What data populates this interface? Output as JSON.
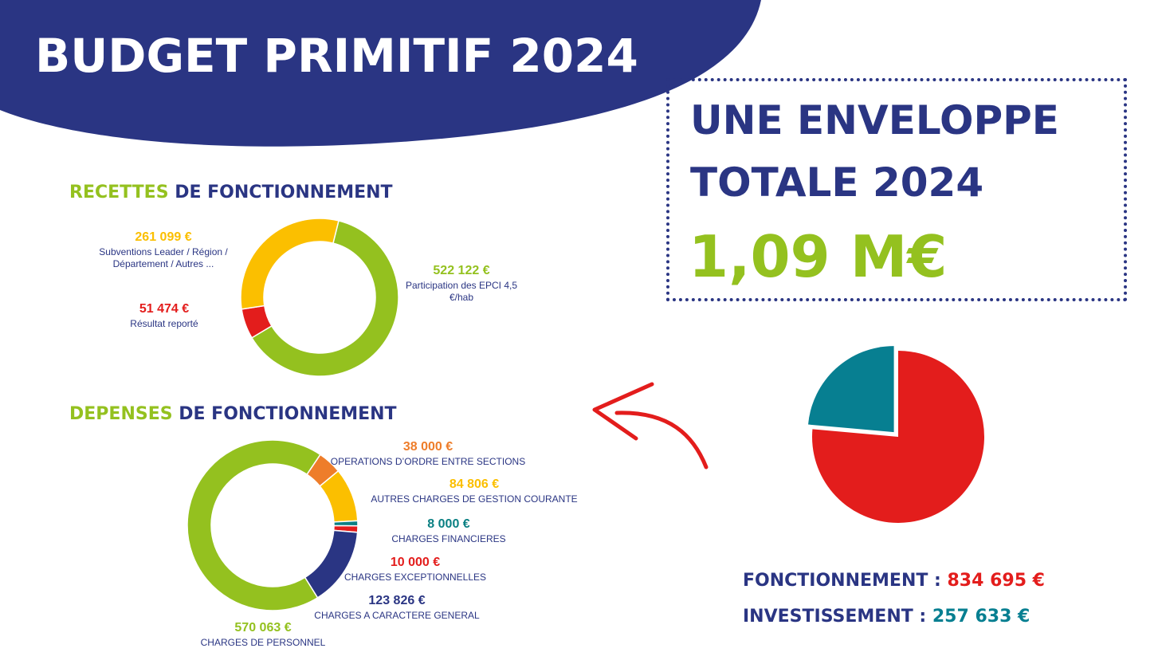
{
  "title": "BUDGET PRIMITIF 2024",
  "colors": {
    "navy": "#2a3583",
    "green": "#94c11f",
    "yellow": "#fbbf00",
    "red": "#e31d1c",
    "orange": "#ee7d2a",
    "teal": "#0b8083",
    "petrol": "#077f91"
  },
  "recettes_title": {
    "part1": "RECETTES",
    "part2": " DE FONCTIONNEMENT"
  },
  "depenses_title": {
    "part1": "DEPENSES",
    "part2": " DE FONCTIONNEMENT"
  },
  "envelope": {
    "line1": "UNE ENVELOPPE",
    "line2": "TOTALE 2024",
    "amount": "1,09 M€"
  },
  "summary": {
    "fonctionnement_label": "FONCTIONNEMENT : ",
    "fonctionnement_value": "834 695 €",
    "investissement_label": "INVESTISSEMENT : ",
    "investissement_value": "257 633 €"
  },
  "chart_data": [
    {
      "type": "pie",
      "title": "RECETTES DE FONCTIONNEMENT",
      "donut": true,
      "slices": [
        {
          "label": "Participation des EPCI 4,5 €/hab",
          "value": 522122,
          "display": "522 122 €",
          "color": "#94c11f"
        },
        {
          "label": "Résultat reporté",
          "value": 51474,
          "display": "51 474 €",
          "color": "#e31d1c"
        },
        {
          "label": "Subventions Leader / Région / Département / Autres ...",
          "value": 261099,
          "display": "261 099 €",
          "color": "#fbbf00"
        }
      ]
    },
    {
      "type": "pie",
      "title": "DEPENSES DE FONCTIONNEMENT",
      "donut": true,
      "slices": [
        {
          "label": "OPERATIONS D’ORDRE ENTRE SECTIONS",
          "value": 38000,
          "display": "38 000 €",
          "color": "#ee7d2a"
        },
        {
          "label": "AUTRES CHARGES DE GESTION COURANTE",
          "value": 84806,
          "display": "84 806 €",
          "color": "#fbbf00"
        },
        {
          "label": "CHARGES FINANCIERES",
          "value": 8000,
          "display": "8 000 €",
          "color": "#0b8083"
        },
        {
          "label": "CHARGES EXCEPTIONNELLES",
          "value": 10000,
          "display": "10 000 €",
          "color": "#e31d1c"
        },
        {
          "label": "CHARGES A CARACTERE GENERAL",
          "value": 123826,
          "display": "123 826 €",
          "color": "#2a3583"
        },
        {
          "label": "CHARGES DE PERSONNEL",
          "value": 570063,
          "display": "570 063 €",
          "color": "#94c11f"
        }
      ]
    },
    {
      "type": "pie",
      "title": "",
      "donut": false,
      "slices": [
        {
          "label": "FONCTIONNEMENT",
          "value": 834695,
          "display": "834 695 €",
          "color": "#e31d1c"
        },
        {
          "label": "INVESTISSEMENT",
          "value": 257633,
          "display": "257 633 €",
          "color": "#077f91"
        }
      ]
    }
  ]
}
